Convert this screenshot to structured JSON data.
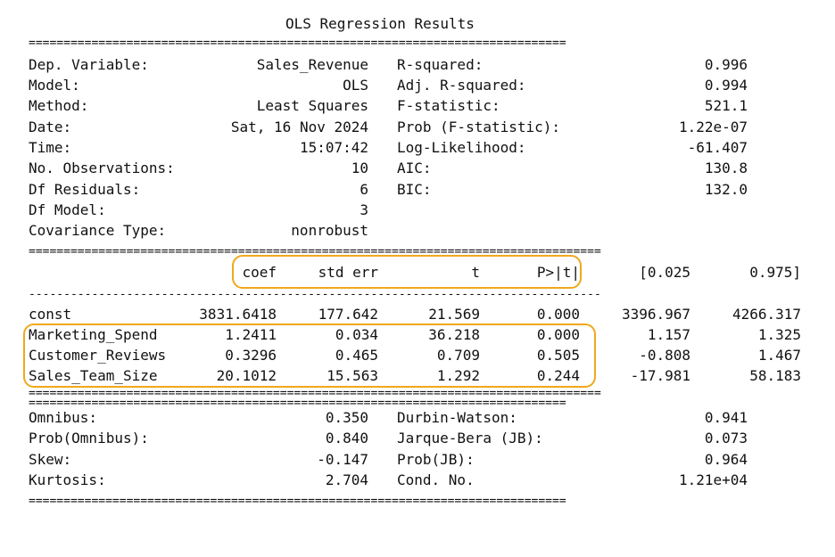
{
  "title": "OLS Regression Results",
  "rules": {
    "double_short": "=============================================================================",
    "double_long": "==================================================================================",
    "single_long": "----------------------------------------------------------------------------------"
  },
  "summary_left": [
    {
      "label": "Dep. Variable:",
      "value": "Sales_Revenue"
    },
    {
      "label": "Model:",
      "value": "OLS"
    },
    {
      "label": "Method:",
      "value": "Least Squares"
    },
    {
      "label": "Date:",
      "value": "Sat, 16 Nov 2024"
    },
    {
      "label": "Time:",
      "value": "15:07:42"
    },
    {
      "label": "No. Observations:",
      "value": "10"
    },
    {
      "label": "Df Residuals:",
      "value": "6"
    },
    {
      "label": "Df Model:",
      "value": "3"
    },
    {
      "label": "Covariance Type:",
      "value": "nonrobust"
    }
  ],
  "summary_right": [
    {
      "label": "R-squared:",
      "value": "0.996"
    },
    {
      "label": "Adj. R-squared:",
      "value": "0.994"
    },
    {
      "label": "F-statistic:",
      "value": "521.1"
    },
    {
      "label": "Prob (F-statistic):",
      "value": "1.22e-07"
    },
    {
      "label": "Log-Likelihood:",
      "value": "-61.407"
    },
    {
      "label": "AIC:",
      "value": "130.8"
    },
    {
      "label": "BIC:",
      "value": "132.0"
    }
  ],
  "coef_headers": [
    "coef",
    "std err",
    "t",
    "P>|t|",
    "[0.025",
    "0.975]"
  ],
  "coef_rows": [
    {
      "name": "const",
      "values": [
        "3831.6418",
        "177.642",
        "21.569",
        "0.000",
        "3396.967",
        "4266.317"
      ]
    },
    {
      "name": "Marketing_Spend",
      "values": [
        "1.2411",
        "0.034",
        "36.218",
        "0.000",
        "1.157",
        "1.325"
      ]
    },
    {
      "name": "Customer_Reviews",
      "values": [
        "0.3296",
        "0.465",
        "0.709",
        "0.505",
        "-0.808",
        "1.467"
      ]
    },
    {
      "name": "Sales_Team_Size",
      "values": [
        "20.1012",
        "15.563",
        "1.292",
        "0.244",
        "-17.981",
        "58.183"
      ]
    }
  ],
  "diag_left": [
    {
      "label": "Omnibus:",
      "value": "0.350"
    },
    {
      "label": "Prob(Omnibus):",
      "value": "0.840"
    },
    {
      "label": "Skew:",
      "value": "-0.147"
    },
    {
      "label": "Kurtosis:",
      "value": "2.704"
    }
  ],
  "diag_right": [
    {
      "label": "Durbin-Watson:",
      "value": "0.941"
    },
    {
      "label": "Jarque-Bera (JB):",
      "value": "0.073"
    },
    {
      "label": "Prob(JB):",
      "value": "0.964"
    },
    {
      "label": "Cond. No.",
      "value": "1.21e+04"
    }
  ],
  "highlight_color": "#f0a81c"
}
